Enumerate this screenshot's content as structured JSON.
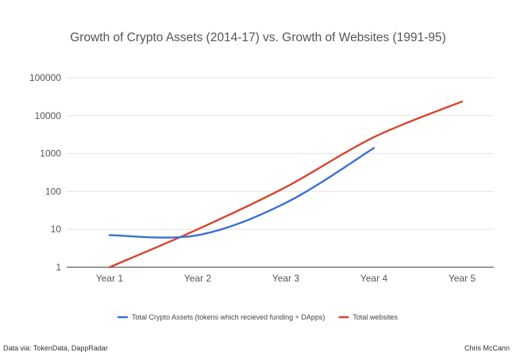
{
  "chart_data": {
    "type": "line",
    "title": "Growth of Crypto Assets (2014-17) vs. Growth of Websites (1991-95)",
    "categories": [
      "Year 1",
      "Year 2",
      "Year 3",
      "Year 4",
      "Year 5"
    ],
    "y_scale": "log",
    "ylim": [
      1,
      100000
    ],
    "y_ticks": [
      1,
      10,
      100,
      1000,
      10000,
      100000
    ],
    "y_tick_labels": [
      "1",
      "10",
      "100",
      "1000",
      "10000",
      "100000"
    ],
    "grid": true,
    "legend_position": "bottom",
    "series": [
      {
        "name": "Total Crypto Assets (tokens which recieved funding + DApps)",
        "color": "#3d6fd6",
        "values": [
          7,
          7,
          50,
          1400,
          null
        ]
      },
      {
        "name": "Total websites",
        "color": "#d9432b",
        "values": [
          1,
          10,
          130,
          2700,
          23500
        ]
      }
    ]
  },
  "footer": {
    "source": "Data via: TokenData, DappRadar",
    "author": "Chris McCann"
  }
}
